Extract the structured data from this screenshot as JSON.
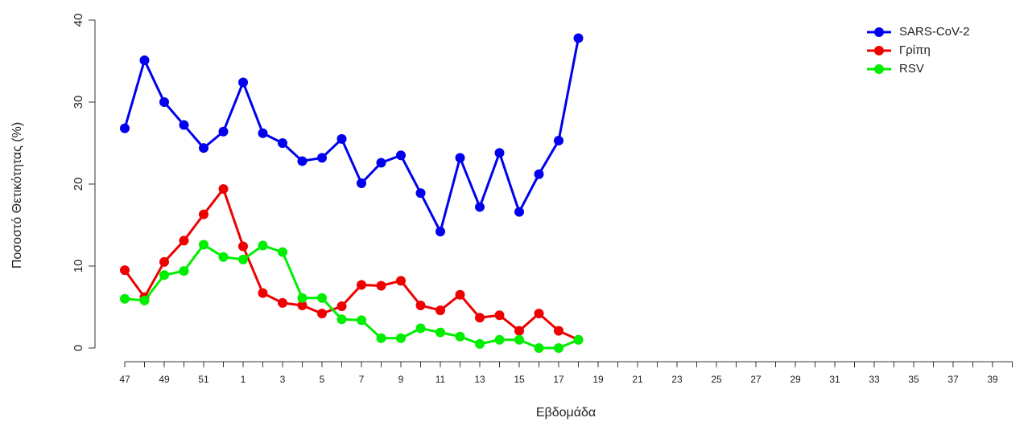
{
  "chart_data": {
    "type": "line",
    "y_label": "Ποσοστό Θετικότητας (%)",
    "x_label": "Εβδομάδα",
    "categories": [
      "47",
      null,
      "49",
      null,
      "51",
      null,
      "1",
      null,
      "3",
      null,
      "5",
      null,
      "7",
      null,
      "9",
      null,
      "11",
      null,
      "13",
      null,
      "15",
      null,
      "17",
      null,
      "19",
      null,
      "21",
      null,
      "23",
      null,
      "25",
      null,
      "27",
      null,
      "29",
      null,
      "31",
      null,
      "33",
      null,
      "35",
      null,
      "37",
      null,
      "39",
      null
    ],
    "series": [
      {
        "name": "SARS-CoV-2",
        "color": "#0000ee",
        "values": [
          26.8,
          35.1,
          30.0,
          27.2,
          24.4,
          26.4,
          32.4,
          26.2,
          25.0,
          22.8,
          23.2,
          25.5,
          20.1,
          22.6,
          23.5,
          18.9,
          14.2,
          23.2,
          17.2,
          23.8,
          16.6,
          21.2,
          25.3,
          37.8,
          null,
          null,
          null,
          null,
          null,
          null,
          null,
          null,
          null,
          null,
          null,
          null,
          null,
          null,
          null,
          null,
          null,
          null,
          null,
          null,
          null,
          null
        ]
      },
      {
        "name": "Γρίπη",
        "color": "#ee0000",
        "values": [
          9.5,
          6.2,
          10.5,
          13.1,
          16.3,
          19.4,
          12.4,
          6.7,
          5.5,
          5.2,
          4.2,
          5.1,
          7.7,
          7.6,
          8.2,
          5.2,
          4.6,
          6.5,
          3.7,
          4.0,
          2.1,
          4.2,
          2.1,
          1.0,
          null,
          null,
          null,
          null,
          null,
          null,
          null,
          null,
          null,
          null,
          null,
          null,
          null,
          null,
          null,
          null,
          null,
          null,
          null,
          null,
          null,
          null
        ]
      },
      {
        "name": "RSV",
        "color": "#00ee00",
        "values": [
          6.0,
          5.8,
          8.9,
          9.4,
          12.6,
          11.1,
          10.8,
          12.5,
          11.7,
          6.1,
          6.1,
          3.5,
          3.4,
          1.2,
          1.2,
          2.4,
          1.9,
          1.4,
          0.5,
          1.0,
          1.0,
          0.0,
          0.0,
          1.0,
          null,
          null,
          null,
          null,
          null,
          null,
          null,
          null,
          null,
          null,
          null,
          null,
          null,
          null,
          null,
          null,
          null,
          null,
          null,
          null,
          null,
          null
        ]
      }
    ],
    "ylim": [
      0,
      40
    ],
    "yticks": [
      0,
      10,
      20,
      30,
      40
    ],
    "legend": "top-right"
  }
}
